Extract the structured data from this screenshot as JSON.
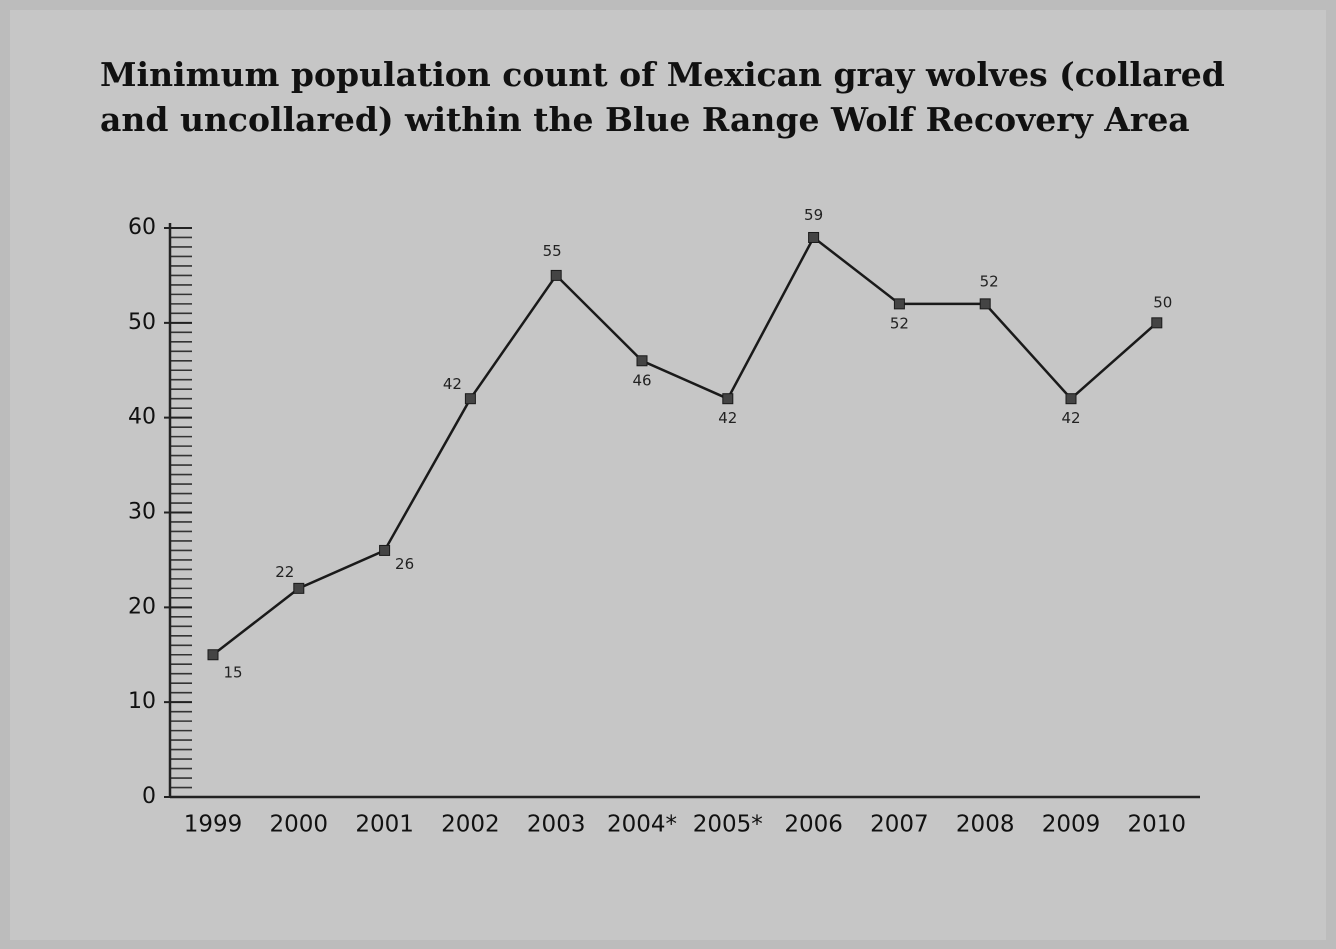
{
  "chart_data": {
    "type": "line",
    "title_lines": [
      "Minimum population count of Mexican gray wolves (collared",
      "and uncollared) within the Blue Range Wolf Recovery Area"
    ],
    "categories": [
      "1999",
      "2000",
      "2001",
      "2002",
      "2003",
      "2004*",
      "2005*",
      "2006",
      "2007",
      "2008",
      "2009",
      "2010"
    ],
    "series": [
      {
        "color": "#1a1a1a",
        "values": [
          15,
          22,
          26,
          42,
          55,
          46,
          42,
          59,
          52,
          52,
          42,
          50
        ]
      }
    ],
    "ylim": [
      0,
      60
    ],
    "yticks": [
      0,
      10,
      20,
      30,
      40,
      50,
      60
    ]
  }
}
